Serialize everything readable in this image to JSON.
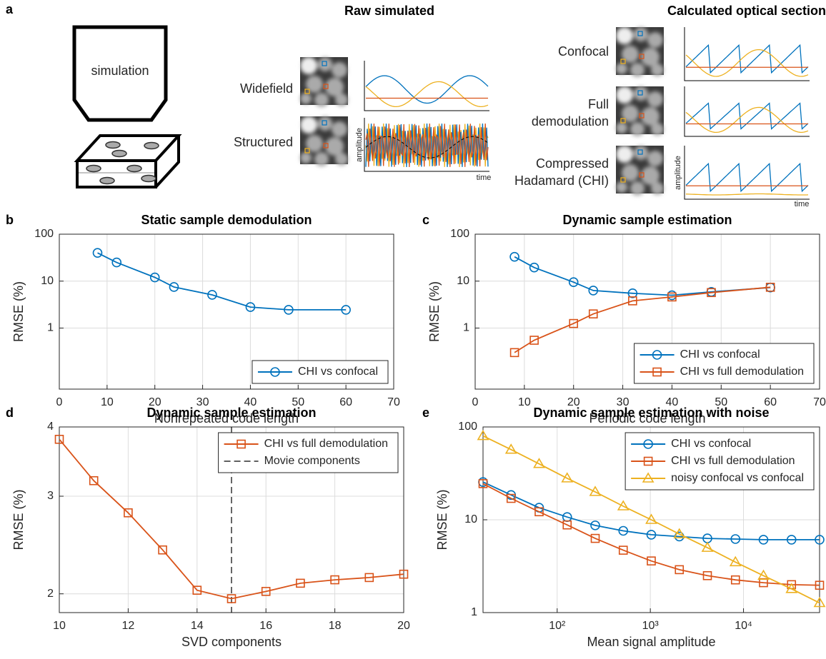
{
  "panel_a": {
    "panel": "a",
    "simulation": "simulation",
    "raw_title": "Raw simulated",
    "calc_title": "Calculated optical section",
    "widefield": "Widefield",
    "structured": "Structured",
    "confocal": "Confocal",
    "full_demodulation": [
      "Full",
      "demodulation"
    ],
    "chi": [
      "Compressed",
      "Hadamard (CHI)"
    ],
    "amplitude": "amplitude",
    "time": "time"
  },
  "chart_data": [
    {
      "type": "line",
      "panel": "b",
      "title": "Static sample demodulation",
      "xlabel": "Nonrepeated code length",
      "ylabel": "RMSE (%)",
      "x": [
        8,
        12,
        20,
        24,
        32,
        40,
        48,
        60
      ],
      "series": [
        {
          "name": "CHI vs confocal",
          "color": "#0072bd",
          "marker": "circle",
          "values": [
            40,
            25,
            12,
            7.5,
            5.1,
            2.8,
            2.45,
            2.45
          ]
        }
      ],
      "xlim": [
        0,
        70
      ],
      "xticks": [
        0,
        10,
        20,
        30,
        40,
        50,
        60,
        70
      ],
      "xscale": "linear",
      "ylim": [
        0.05,
        100
      ],
      "yticks": [
        1,
        10,
        100
      ],
      "yscale": "log",
      "grid": true,
      "legend": "lower right"
    },
    {
      "type": "line",
      "panel": "c",
      "title": "Dynamic sample estimation",
      "xlabel": "Periodic code length",
      "ylabel": "RMSE (%)",
      "x": [
        8,
        12,
        20,
        24,
        32,
        40,
        48,
        60
      ],
      "series": [
        {
          "name": "CHI vs confocal",
          "color": "#0072bd",
          "marker": "circle",
          "values": [
            33,
            19.5,
            9.5,
            6.3,
            5.5,
            5.0,
            5.9,
            7.3
          ]
        },
        {
          "name": "CHI vs full demodulation",
          "color": "#d95319",
          "marker": "square",
          "values": [
            0.3,
            0.55,
            1.25,
            2.0,
            3.8,
            4.6,
            5.7,
            7.4
          ]
        }
      ],
      "xlim": [
        0,
        70
      ],
      "xticks": [
        0,
        10,
        20,
        30,
        40,
        50,
        60,
        70
      ],
      "xscale": "linear",
      "ylim": [
        0.05,
        100
      ],
      "yticks": [
        1,
        10,
        100
      ],
      "yscale": "log",
      "grid": true,
      "legend": "lower right"
    },
    {
      "type": "line",
      "panel": "d",
      "title": "Dynamic sample estimation",
      "xlabel": "SVD components",
      "ylabel": "RMSE (%)",
      "x": [
        10,
        11,
        12,
        13,
        14,
        15,
        16,
        17,
        18,
        19,
        20
      ],
      "series": [
        {
          "name": "CHI vs full demodulation",
          "color": "#d95319",
          "marker": "square",
          "values": [
            3.8,
            3.2,
            2.8,
            2.4,
            2.03,
            1.96,
            2.02,
            2.09,
            2.12,
            2.14,
            2.17
          ]
        }
      ],
      "vline": {
        "name": "Movie components",
        "x": 15,
        "color": "#000000"
      },
      "xlim": [
        10,
        20
      ],
      "xticks": [
        10,
        12,
        14,
        16,
        18,
        20
      ],
      "xscale": "linear",
      "ylim": [
        1.85,
        4
      ],
      "yticks": [
        2,
        3,
        4
      ],
      "yscale": "log",
      "grid": true,
      "legend": "upper right"
    },
    {
      "type": "line",
      "panel": "e",
      "title": "Dynamic sample estimation with noise",
      "xlabel": "Mean signal amplitude",
      "ylabel": "RMSE (%)",
      "x": [
        16,
        32,
        64,
        128,
        256,
        512,
        1024,
        2048,
        4096,
        8192,
        16384,
        32768,
        65536
      ],
      "series": [
        {
          "name": "CHI vs confocal",
          "color": "#0072bd",
          "marker": "circle",
          "values": [
            25.5,
            18.5,
            13.5,
            10.7,
            8.7,
            7.6,
            6.9,
            6.6,
            6.3,
            6.2,
            6.1,
            6.1,
            6.1
          ]
        },
        {
          "name": "CHI vs full demodulation",
          "color": "#d95319",
          "marker": "square",
          "values": [
            24.5,
            17,
            12.2,
            8.8,
            6.3,
            4.7,
            3.6,
            2.9,
            2.5,
            2.25,
            2.1,
            2.0,
            1.97
          ]
        },
        {
          "name": "noisy confocal vs confocal",
          "color": "#edb120",
          "marker": "triangle",
          "values": [
            80,
            57,
            40,
            28,
            20,
            14,
            10,
            7,
            5,
            3.5,
            2.5,
            1.8,
            1.27
          ]
        }
      ],
      "xlim": [
        16,
        65536
      ],
      "xticks": [
        {
          "value": 100,
          "label": "10²"
        },
        {
          "value": 1000,
          "label": "10³"
        },
        {
          "value": 10000,
          "label": "10⁴"
        }
      ],
      "xscale": "log",
      "ylim": [
        1,
        100
      ],
      "yticks": [
        1,
        10,
        100
      ],
      "yscale": "log",
      "grid": true,
      "legend": "upper right"
    }
  ]
}
